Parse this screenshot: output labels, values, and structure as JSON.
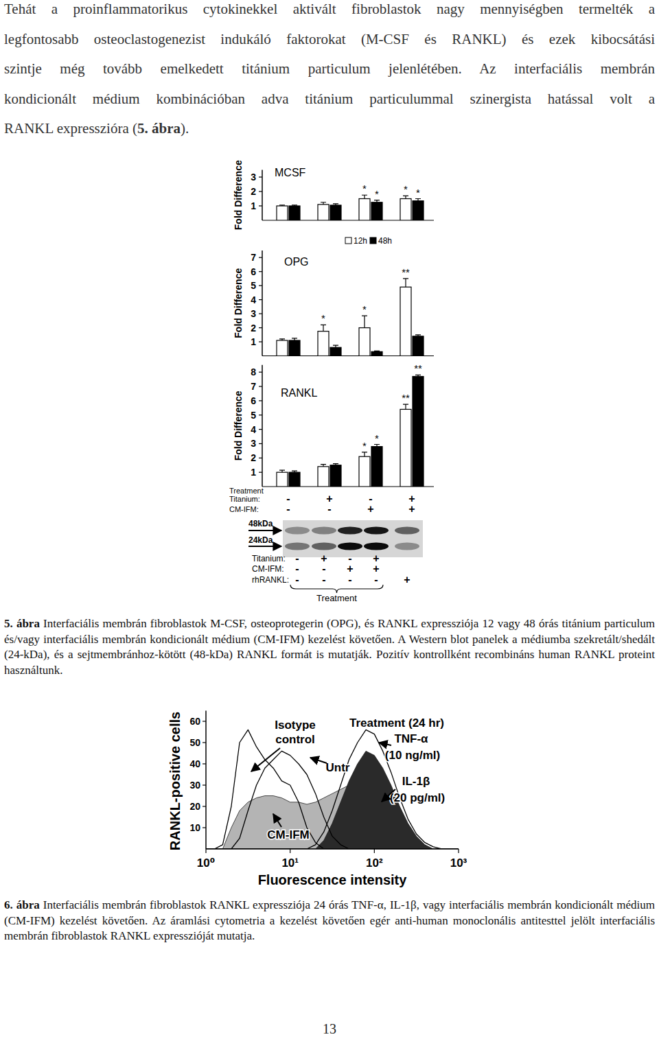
{
  "body": {
    "lines": [
      "Tehát a proinflammatorikus cytokinekkel aktivált fibroblastok nagy mennyiségben termelték a",
      "legfontosabb osteoclastogenezist indukáló faktorokat (M-CSF és RANKL) és ezek kibocsátási",
      "szintje még tovább emelkedett titánium particulum jelenlétében. Az interfaciális membrán",
      "kondicionált médium kombinációban adva titánium particulummal szinergista hatással volt a"
    ],
    "last_line": {
      "before": "RANKL expresszióra (",
      "ref": "5. ábra",
      "after": ")."
    }
  },
  "chart_data": [
    {
      "type": "bar",
      "title": "MCSF",
      "y_label": "Fold Difference",
      "categories": [
        null,
        null,
        null,
        null
      ],
      "series": [
        {
          "name": "12h",
          "color": "#ffffff",
          "values": [
            1.0,
            1.1,
            1.5,
            1.5
          ],
          "errors": [
            0.05,
            0.15,
            0.25,
            0.2
          ],
          "significance": [
            null,
            null,
            "*",
            "*"
          ]
        },
        {
          "name": "48h",
          "color": "#000000",
          "values": [
            1.0,
            1.05,
            1.25,
            1.35
          ],
          "errors": [
            0.05,
            0.1,
            0.15,
            0.15
          ],
          "significance": [
            null,
            null,
            "*",
            "*"
          ]
        }
      ],
      "ylim": [
        0,
        3.5
      ],
      "yticks": [
        1,
        2,
        3
      ],
      "legend": "bottom"
    },
    {
      "type": "bar",
      "title": "OPG",
      "y_label": "Fold Difference",
      "categories": [
        null,
        null,
        null,
        null
      ],
      "series": [
        {
          "name": "12h",
          "color": "#ffffff",
          "values": [
            1.1,
            1.75,
            2.0,
            4.9
          ],
          "errors": [
            0.1,
            0.45,
            0.85,
            0.6
          ],
          "significance": [
            null,
            "*",
            "*",
            "**"
          ]
        },
        {
          "name": "48h",
          "color": "#000000",
          "values": [
            1.1,
            0.6,
            0.3,
            1.4
          ],
          "errors": [
            0.15,
            0.15,
            0.05,
            0.1
          ],
          "significance": [
            null,
            null,
            null,
            null
          ]
        }
      ],
      "ylim": [
        0,
        7.5
      ],
      "yticks": [
        1,
        2,
        3,
        4,
        5,
        6,
        7
      ]
    },
    {
      "type": "bar",
      "title": "RANKL",
      "y_label": "Fold Difference",
      "categories": [
        null,
        null,
        null,
        null
      ],
      "series": [
        {
          "name": "12h",
          "color": "#ffffff",
          "values": [
            1.0,
            1.4,
            2.1,
            5.4
          ],
          "errors": [
            0.15,
            0.15,
            0.3,
            0.35
          ],
          "significance": [
            null,
            null,
            "*",
            "**"
          ]
        },
        {
          "name": "48h",
          "color": "#000000",
          "values": [
            1.0,
            1.5,
            2.8,
            7.7
          ],
          "errors": [
            0.1,
            0.1,
            0.15,
            0.1
          ],
          "significance": [
            null,
            null,
            "*",
            "**"
          ]
        }
      ],
      "ylim": [
        0,
        8.5
      ],
      "yticks": [
        1,
        2,
        3,
        4,
        5,
        6,
        7,
        8
      ],
      "treatment": {
        "title": "Treatment",
        "rows": [
          {
            "label": "Titanium:",
            "values": [
              "-",
              "+",
              "-",
              "+"
            ]
          },
          {
            "label": "CM-IFM:",
            "values": [
              "-",
              "-",
              "+",
              "+"
            ]
          }
        ]
      }
    },
    {
      "type": "area",
      "log": "x",
      "x_label": "Fluorescence intensity",
      "y_label": "RANKL-positive cells",
      "annotation": "Treatment (24 hr)",
      "x": [
        1,
        1.26,
        1.58,
        2,
        2.51,
        3.16,
        3.98,
        5.01,
        6.31,
        7.94,
        10,
        12.6,
        15.8,
        20,
        25.1,
        31.6,
        39.8,
        50.1,
        63.1,
        79.4,
        100,
        126,
        158,
        200,
        251,
        316,
        398,
        501,
        631,
        794,
        1000
      ],
      "series": [
        {
          "name": "CM-IFM",
          "type": "area",
          "color": "#b4b4b4",
          "values": [
            0,
            0,
            0,
            10,
            18,
            22,
            24,
            25,
            25,
            24,
            22,
            22,
            21,
            22,
            24,
            26,
            28,
            30,
            30,
            28,
            26,
            22,
            16,
            10,
            6,
            3,
            1,
            0,
            0,
            0,
            0
          ]
        },
        {
          "name": "IL-1β",
          "dose": "(20 pg/ml)",
          "type": "area",
          "color": "#2a2a2a",
          "values": [
            0,
            0,
            0,
            0,
            0,
            0,
            0,
            0,
            0,
            0,
            0,
            0,
            0,
            0,
            4,
            12,
            22,
            32,
            40,
            46,
            44,
            38,
            30,
            20,
            12,
            6,
            2,
            0,
            0,
            0,
            0
          ]
        },
        {
          "name": "Isotype control",
          "type": "line",
          "color": "#000000",
          "values": [
            0,
            0,
            2,
            20,
            50,
            56,
            48,
            42,
            38,
            32,
            30,
            22,
            10,
            3,
            0,
            0,
            0,
            0,
            0,
            0,
            0,
            0,
            0,
            0,
            0,
            0,
            0,
            0,
            0,
            0,
            0
          ]
        },
        {
          "name": "Untr",
          "type": "line",
          "color": "#000000",
          "values": [
            0,
            0,
            0,
            0,
            5,
            18,
            30,
            38,
            42,
            46,
            44,
            40,
            35,
            26,
            15,
            6,
            2,
            0,
            0,
            0,
            0,
            0,
            0,
            0,
            0,
            0,
            0,
            0,
            0,
            0,
            0
          ]
        },
        {
          "name": "TNF-α",
          "dose": "(10 ng/ml)",
          "type": "line",
          "color": "#000000",
          "values": [
            0,
            0,
            0,
            0,
            0,
            0,
            0,
            0,
            0,
            0,
            0,
            0,
            0,
            2,
            8,
            18,
            30,
            42,
            50,
            56,
            54,
            46,
            36,
            24,
            14,
            7,
            3,
            1,
            0,
            0,
            0
          ]
        }
      ],
      "xlim": [
        1,
        1000
      ],
      "xticks": [
        {
          "value": 1,
          "label": "10⁰"
        },
        {
          "value": 10,
          "label": "10¹"
        },
        {
          "value": 100,
          "label": "10²"
        },
        {
          "value": 1000,
          "label": "10³"
        }
      ],
      "ylim": [
        0,
        65
      ],
      "yticks": [
        10,
        20,
        30,
        40,
        50,
        60
      ]
    }
  ],
  "blot": {
    "markers": [
      {
        "label": "48kDa",
        "intensity": [
          0.35,
          0.4,
          0.85,
          0.9,
          0.55
        ]
      },
      {
        "label": "24kDa",
        "intensity": [
          0.45,
          0.55,
          0.95,
          0.95,
          0.35
        ]
      }
    ],
    "rows": [
      {
        "label": "Titanium:",
        "values": [
          "-",
          "+",
          "-",
          "+",
          null
        ]
      },
      {
        "label": "CM-IFM:",
        "values": [
          "-",
          "-",
          "+",
          "+",
          null
        ]
      },
      {
        "label": "rhRANKL:",
        "values": [
          "-",
          "-",
          "-",
          "-",
          "+"
        ]
      }
    ],
    "group_label": "Treatment"
  },
  "captions": [
    {
      "label": "5. ábra",
      "text": "Interfaciális membrán fibroblastok M-CSF, osteoprotegerin (OPG), és RANKL expressziója 12 vagy 48 órás titánium particulum és/vagy interfaciális membrán kondicionált médium (CM-IFM) kezelést követően. A Western blot panelek a médiumba szekretált/shedált (24-kDa), és a sejtmembránhoz-kötött (48-kDa) RANKL formát is mutatják. Pozitív kontrollként recombináns human RANKL proteint használtunk."
    },
    {
      "label": "6. ábra",
      "text": "Interfaciális membrán fibroblastok RANKL expressziója 24 órás TNF-α, IL-1β, vagy interfaciális membrán kondicionált médium (CM-IFM) kezelést követően. Az áramlási cytometria a kezelést követően egér anti-human monoclonális antitesttel jelölt  interfaciális membrán fibroblastok RANKL expresszióját mutatja."
    }
  ],
  "page_number": "13"
}
